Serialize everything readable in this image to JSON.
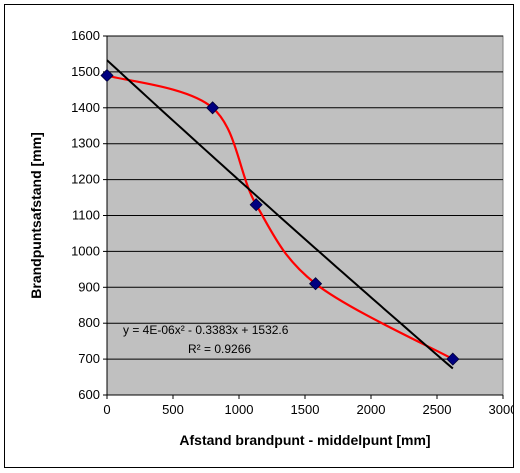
{
  "chart_data": {
    "type": "scatter",
    "title": "",
    "xlabel": "Afstand brandpunt - middelpunt [mm]",
    "ylabel": "Brandpuntsafstand [mm]",
    "xlim": [
      0,
      3000
    ],
    "ylim": [
      600,
      1600
    ],
    "xticks": [
      0,
      500,
      1000,
      1500,
      2000,
      2500,
      3000
    ],
    "yticks": [
      600,
      700,
      800,
      900,
      1000,
      1100,
      1200,
      1300,
      1400,
      1500,
      1600
    ],
    "grid": "horizontal",
    "plot_background": "#c0c0c0",
    "points": {
      "x": [
        0,
        800,
        1130,
        1580,
        2620
      ],
      "y": [
        1490,
        1400,
        1130,
        910,
        700
      ],
      "marker": "diamond",
      "color": "#000080"
    },
    "smooth_line": {
      "color": "#ff0000"
    },
    "trendline": {
      "type": "polynomial",
      "coefficients": [
        4e-06,
        -0.3383,
        1532.6
      ],
      "color": "#000000",
      "x_range": [
        0,
        2620
      ]
    },
    "annotations": {
      "equation": "y = 4E-06x² - 0.3383x + 1532.6",
      "r_squared": "R² = 0.9266"
    }
  }
}
